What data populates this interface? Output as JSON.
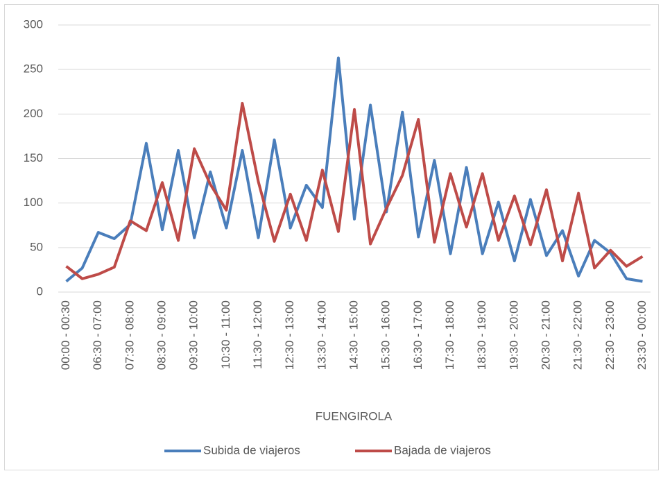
{
  "chart_data": {
    "type": "line",
    "x_label": "FUENGIROLA",
    "categories": [
      "00:00 - 00:30",
      null,
      "06:30 - 07:00",
      null,
      "07:30 - 08:00",
      null,
      "08:30 - 09:00",
      null,
      "09:30 - 10:00",
      null,
      "10:30 - 11:00",
      null,
      "11:30 - 12:00",
      null,
      "12:30 - 13:00",
      null,
      "13:30 - 14:00",
      null,
      "14:30 - 15:00",
      null,
      "15:30 - 16:00",
      null,
      "16:30 - 17:00",
      null,
      "17:30 - 18:00",
      null,
      "18:30 - 19:00",
      null,
      "19:30 - 20:00",
      null,
      "20:30 - 21:00",
      null,
      "21:30 - 22:00",
      null,
      "22:30 - 23:00",
      null,
      "23:30 - 00:00"
    ],
    "series": [
      {
        "name": "Subida de viajeros",
        "color": "#4a7ebb",
        "values": [
          12,
          27,
          67,
          60,
          76,
          167,
          70,
          159,
          61,
          135,
          72,
          159,
          61,
          171,
          72,
          120,
          95,
          263,
          82,
          210,
          90,
          202,
          62,
          148,
          43,
          140,
          43,
          101,
          35,
          104,
          41,
          69,
          18,
          58,
          44,
          15,
          12
        ]
      },
      {
        "name": "Bajada de viajeros",
        "color": "#be4b48",
        "values": [
          29,
          15,
          20,
          28,
          80,
          69,
          123,
          58,
          161,
          121,
          92,
          212,
          124,
          57,
          110,
          58,
          137,
          68,
          205,
          54,
          94,
          131,
          194,
          56,
          133,
          73,
          133,
          58,
          108,
          53,
          115,
          35,
          111,
          27,
          47,
          29,
          40
        ]
      }
    ],
    "ylim": [
      0,
      300
    ],
    "yticks": [
      0,
      50,
      100,
      150,
      200,
      250,
      300
    ],
    "grid": true
  }
}
